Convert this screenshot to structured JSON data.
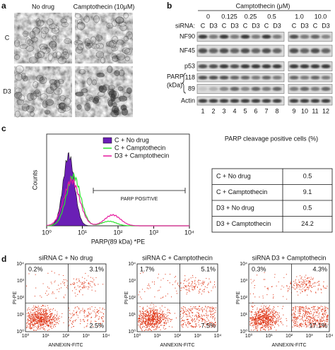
{
  "panel_a": {
    "label": "a",
    "columns": [
      "No drug",
      "Camptothecin (10μM)"
    ],
    "rows": [
      "C",
      "D3"
    ]
  },
  "panel_b": {
    "label": "b",
    "treatment": "Camptothecin (μM)",
    "sirna_label": "siRNA:",
    "concentrations": [
      "0",
      "0.125",
      "0.25",
      "0.5",
      "1.0",
      "10.0"
    ],
    "lane_sirna": [
      "C",
      "D3",
      "C",
      "D3",
      "C",
      "D3",
      "C",
      "D3",
      "C",
      "D3",
      "C",
      "D3"
    ],
    "blots": [
      "NF90",
      "NF45",
      "p53",
      "118",
      "89",
      "Actin"
    ],
    "parp_label": "PARP",
    "parp_unit": "(kDa)",
    "lane_numbers": [
      "1",
      "2",
      "3",
      "4",
      "5",
      "6",
      "7",
      "8",
      "9",
      "10",
      "11",
      "12"
    ]
  },
  "panel_c": {
    "label": "c",
    "y_axis": "Counts",
    "x_axis": "PARP(89 kDa) *PE",
    "x_ticks": [
      "10⁰",
      "10¹",
      "10²",
      "10³",
      "10⁴"
    ],
    "legend": [
      "C + No drug",
      "C + Camptothecin",
      "D3 + Camptothecin"
    ],
    "annotation": "PARP POSITIVE",
    "table": {
      "title": "PARP cleavage positive cells (%)",
      "rows": [
        [
          "C + No drug",
          0.5
        ],
        [
          "C + Camptothecin",
          9.1
        ],
        [
          "D3 + No drug",
          0.5
        ],
        [
          "D3 + Camptothecin",
          24.2
        ]
      ]
    }
  },
  "panel_d": {
    "label": "d",
    "x_axis": "ANNEXIN-FITC",
    "y_axis": "PI-PE",
    "ticks": [
      "10⁰",
      "10¹",
      "10²",
      "10³",
      "10⁴"
    ],
    "plots": [
      {
        "title": "siRNA C + No drug",
        "quadrants": [
          "0.2%",
          "3.1%",
          "2.5%"
        ]
      },
      {
        "title": "siRNA C + Camptothecin",
        "quadrants": [
          "1.7%",
          "5.1%",
          "7.5%"
        ]
      },
      {
        "title": "siRNA D3 + Camptothecin",
        "quadrants": [
          "0.3%",
          "4.3%",
          "17.1%"
        ]
      }
    ]
  }
}
